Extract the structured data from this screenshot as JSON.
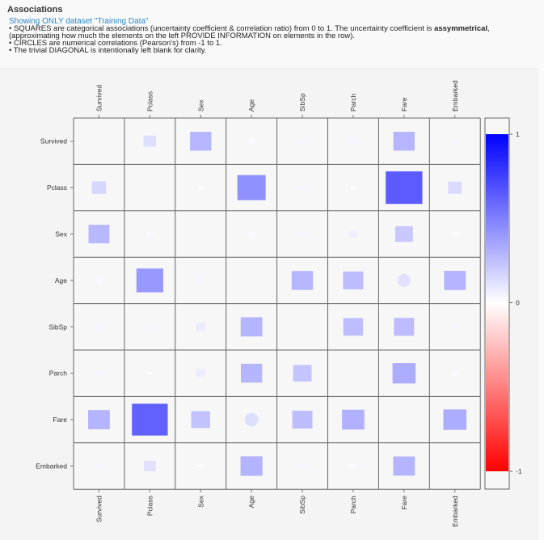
{
  "panel": {
    "title": "Associations",
    "subtitle": "Showing ONLY dataset \"Training Data\"",
    "note1_pre": "• SQUARES are categorical associations (uncertainty coefficient & correlation ratio) from 0 to 1. The uncertainty coefficient is ",
    "note1_bold": "assymmetrical",
    "note1_post": ",",
    "note2": "(approximating how much the elements on the left PROVIDE INFORMATION on elements in the row).",
    "note3": "• CIRCLES are numerical correlations (Pearson's) from -1 to 1.",
    "note4": "• The trivial DIAGONAL is intentionally left blank for clarity."
  },
  "colors": {
    "positive": "#0000ff",
    "neutral": "#ffffff",
    "negative": "#ff0000",
    "grid": "#666666",
    "label": "#333333"
  },
  "chart_data": {
    "type": "heatmap",
    "title": "Associations",
    "dataset": "Training Data",
    "variables": [
      "Survived",
      "Pclass",
      "Sex",
      "Age",
      "SibSp",
      "Parch",
      "Fare",
      "Embarked"
    ],
    "numeric_pairs_note": "circles mark Pearson correlations between numeric variables; squares mark categorical associations",
    "cells": [
      [
        null,
        0.1,
        0.29,
        0.01,
        0.02,
        0.02,
        0.29,
        0.02
      ],
      [
        0.13,
        null,
        0.0,
        0.51,
        0.02,
        0.0,
        0.86,
        0.12
      ],
      [
        0.28,
        0.01,
        null,
        0.01,
        0.02,
        0.04,
        0.2,
        0.01
      ],
      [
        0.01,
        0.46,
        0.02,
        null,
        0.29,
        0.26,
        0.09,
        0.3
      ],
      [
        0.02,
        0.02,
        0.05,
        0.3,
        null,
        0.25,
        0.26,
        0.02
      ],
      [
        0.02,
        0.0,
        0.05,
        0.29,
        0.22,
        null,
        0.34,
        0.01
      ],
      [
        0.3,
        0.82,
        0.23,
        0.1,
        0.26,
        0.32,
        null,
        0.34
      ],
      [
        0.02,
        0.09,
        0.0,
        0.31,
        0.02,
        0.01,
        0.3,
        null
      ]
    ],
    "circle_cells": [
      [
        3,
        6
      ],
      [
        6,
        3
      ]
    ],
    "colorbar": {
      "min": -1,
      "max": 1,
      "ticks": [
        "1",
        "0",
        "-1"
      ],
      "stops": [
        "#0000ff",
        "#ffffff",
        "#ff0000"
      ]
    }
  }
}
